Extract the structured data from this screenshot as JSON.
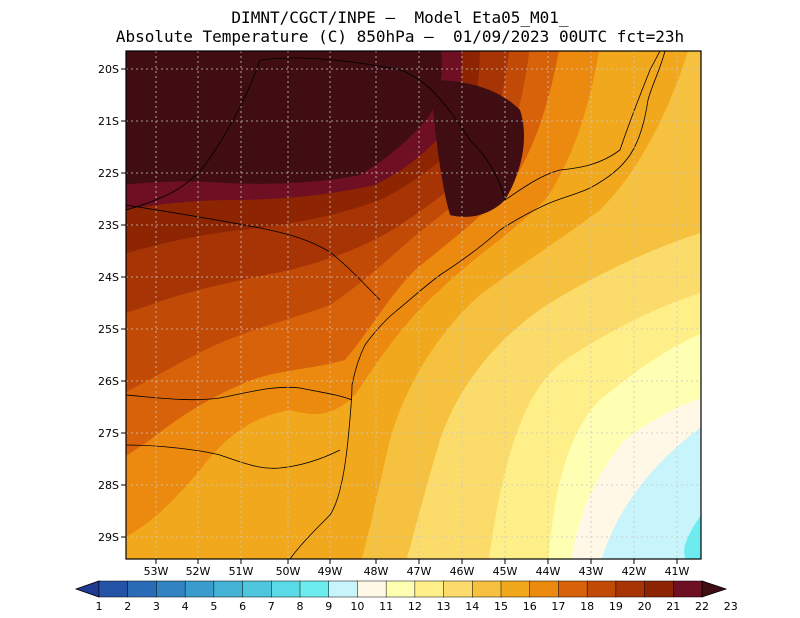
{
  "header": {
    "line1": "DIMNT/CGCT/INPE –  Model Eta05_M01_",
    "line2": "Absolute Temperature (C) 850hPa –  01/09/2023 00UTC fct=23h"
  },
  "map": {
    "lat_labels": [
      "20S",
      "21S",
      "22S",
      "23S",
      "24S",
      "25S",
      "26S",
      "27S",
      "28S",
      "29S"
    ],
    "lon_labels": [
      "53W",
      "52W",
      "51W",
      "50W",
      "49W",
      "48W",
      "47W",
      "46W",
      "45W",
      "44W",
      "43W",
      "42W",
      "41W"
    ]
  },
  "colorbar": {
    "labels": [
      "1",
      "2",
      "3",
      "4",
      "5",
      "6",
      "7",
      "8",
      "9",
      "10",
      "11",
      "12",
      "13",
      "14",
      "15",
      "16",
      "17",
      "18",
      "19",
      "20",
      "21",
      "22",
      "23"
    ],
    "colors": [
      "#1f3a93",
      "#2453a5",
      "#2a6cb5",
      "#3183c2",
      "#3a9ccc",
      "#44b3d6",
      "#4ec7de",
      "#5adae6",
      "#6cecef",
      "#c8f4fb",
      "#fff8e6",
      "#ffffb3",
      "#ffef88",
      "#fbdc6a",
      "#f5c13f",
      "#f2a81c",
      "#ec8a10",
      "#d8620a",
      "#c24a07",
      "#a63405",
      "#8d2503",
      "#6e0f24",
      "#3f0d12"
    ]
  }
}
